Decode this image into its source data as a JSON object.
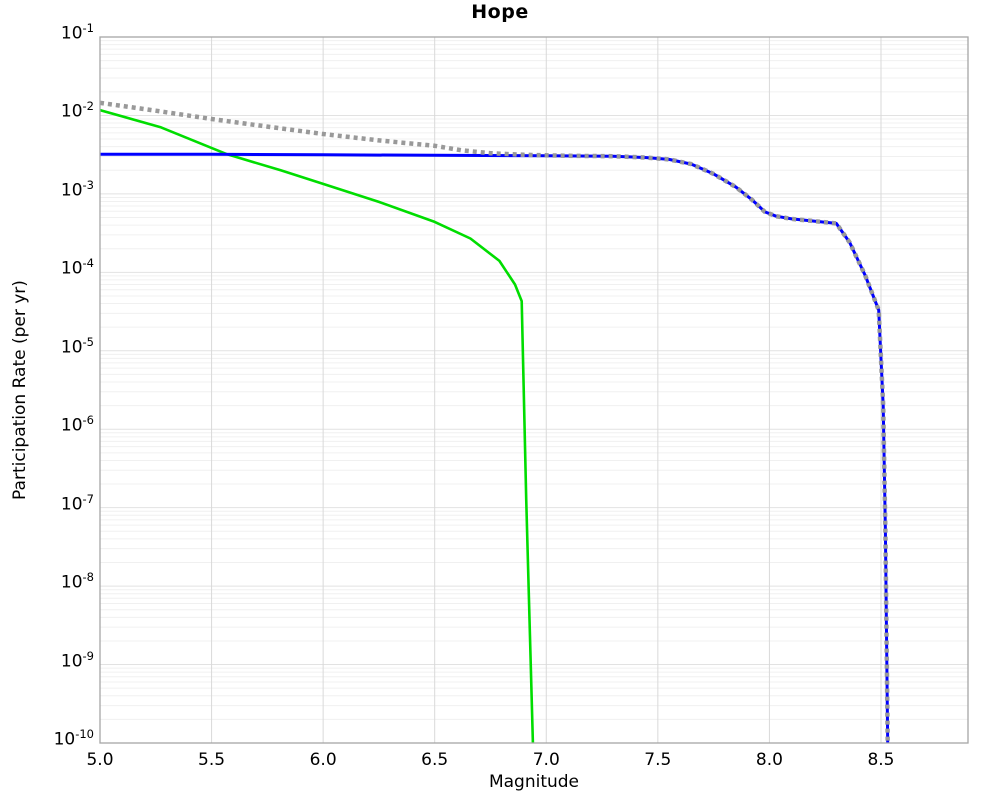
{
  "title": "Hope",
  "chart_data": {
    "type": "line",
    "title": "Hope",
    "xlabel": "Magnitude",
    "ylabel": "Participation Rate (per yr)",
    "yscale": "log",
    "xlim": [
      5.0,
      8.89
    ],
    "ylim_exponents": [
      -10,
      -1
    ],
    "x_ticks": [
      5.0,
      5.5,
      6.0,
      6.5,
      7.0,
      7.5,
      8.0,
      8.5
    ],
    "x_tick_labels": [
      "5.0",
      "5.5",
      "6.0",
      "6.5",
      "7.0",
      "7.5",
      "8.0",
      "8.5"
    ],
    "y_tick_base": "10",
    "y_tick_exponents": [
      -1,
      -2,
      -3,
      -4,
      -5,
      -6,
      -7,
      -8,
      -9,
      -10
    ],
    "grid": {
      "vertical_major": true,
      "horizontal_major": true,
      "horizontal_minor": true,
      "legend": "none"
    },
    "colors": {
      "green_line": "#00dd00",
      "blue_line": "#0000ff",
      "gray_dotted_line": "#999999",
      "axis_border": "#a6a6a6",
      "grid_major": "#e2e2e2",
      "grid_minor": "#f0f0f0",
      "grid_vertical": "#d9d9d9",
      "text": "#000000"
    },
    "series": [
      {
        "name": "green-curve",
        "color": "#00dd00",
        "style": "solid",
        "width": 2.6,
        "points": [
          [
            5.0,
            0.0117
          ],
          [
            5.27,
            0.0071
          ],
          [
            5.57,
            0.0032
          ],
          [
            5.81,
            0.002
          ],
          [
            6.0,
            0.00134
          ],
          [
            6.25,
            0.00079
          ],
          [
            6.5,
            0.00044
          ],
          [
            6.66,
            0.00027
          ],
          [
            6.79,
            0.00014
          ],
          [
            6.86,
            7e-05
          ],
          [
            6.89,
            4.3e-05
          ],
          [
            6.91,
            1.3e-07
          ],
          [
            6.94,
            1e-10
          ]
        ]
      },
      {
        "name": "blue-curve",
        "color": "#0000ff",
        "style": "solid",
        "width": 3,
        "points": [
          [
            5.0,
            0.0032
          ],
          [
            5.5,
            0.0032
          ],
          [
            6.0,
            0.00315
          ],
          [
            6.5,
            0.0031
          ],
          [
            7.0,
            0.00307
          ],
          [
            7.3,
            0.00302
          ],
          [
            7.45,
            0.0029
          ],
          [
            7.55,
            0.00275
          ],
          [
            7.65,
            0.0024
          ],
          [
            7.75,
            0.0018
          ],
          [
            7.85,
            0.00122
          ],
          [
            7.92,
            0.00085
          ],
          [
            7.98,
            0.00059
          ],
          [
            8.03,
            0.00052
          ],
          [
            8.1,
            0.00048
          ],
          [
            8.2,
            0.00045
          ],
          [
            8.3,
            0.00042
          ],
          [
            8.36,
            0.00024
          ],
          [
            8.43,
            9e-05
          ],
          [
            8.49,
            3.3e-05
          ],
          [
            8.51,
            2e-06
          ],
          [
            8.52,
            5e-08
          ],
          [
            8.53,
            1e-10
          ]
        ]
      },
      {
        "name": "gray-dotted-curve",
        "color": "#999999",
        "style": "dotted",
        "width": 4.5,
        "points": [
          [
            5.0,
            0.0145
          ],
          [
            5.25,
            0.0115
          ],
          [
            5.5,
            0.009
          ],
          [
            5.75,
            0.0072
          ],
          [
            6.0,
            0.0058
          ],
          [
            6.25,
            0.0048
          ],
          [
            6.5,
            0.0041
          ],
          [
            6.62,
            0.0036
          ],
          [
            6.75,
            0.0033
          ],
          [
            6.9,
            0.00315
          ],
          [
            7.1,
            0.00306
          ],
          [
            7.3,
            0.00302
          ],
          [
            7.45,
            0.0029
          ],
          [
            7.55,
            0.00275
          ],
          [
            7.65,
            0.0024
          ],
          [
            7.75,
            0.0018
          ],
          [
            7.85,
            0.00122
          ],
          [
            7.92,
            0.00085
          ],
          [
            7.98,
            0.00059
          ],
          [
            8.03,
            0.00052
          ],
          [
            8.1,
            0.00048
          ],
          [
            8.2,
            0.00045
          ],
          [
            8.3,
            0.00042
          ],
          [
            8.36,
            0.00024
          ],
          [
            8.43,
            9e-05
          ],
          [
            8.49,
            3.3e-05
          ],
          [
            8.51,
            2e-06
          ],
          [
            8.52,
            5e-08
          ],
          [
            8.53,
            1e-10
          ]
        ]
      }
    ]
  }
}
